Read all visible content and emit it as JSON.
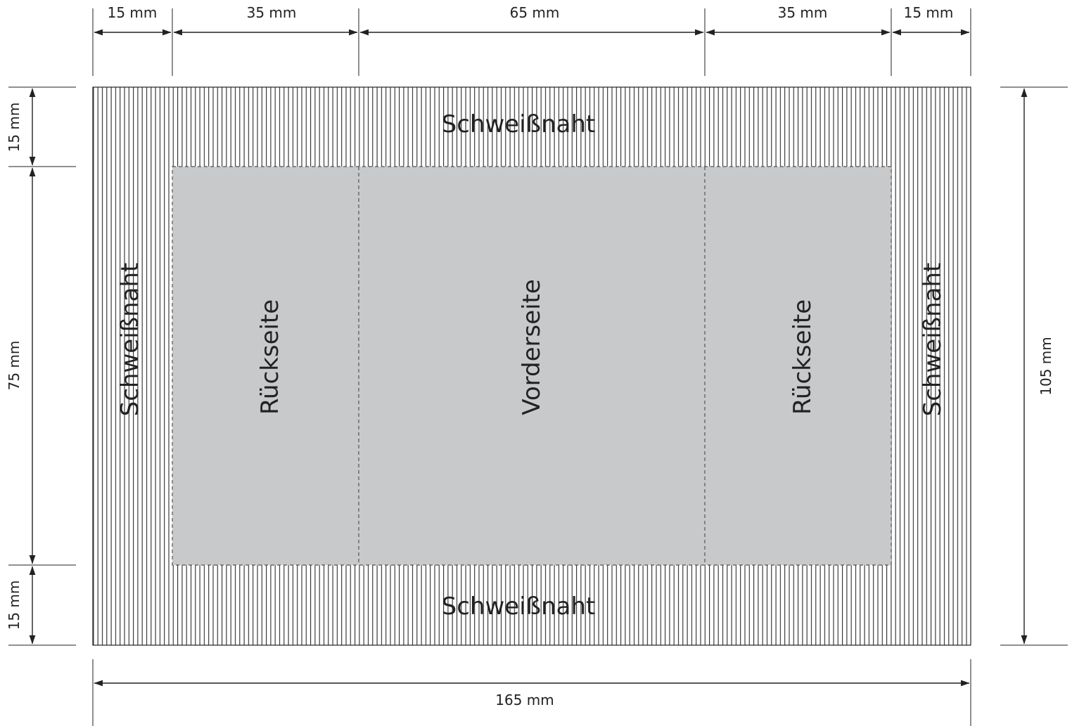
{
  "colors": {
    "ink": "#222222",
    "print_area": "#c8c9cb",
    "seam_hatch": "#2a2a2a",
    "background": "#ffffff"
  },
  "dimensions": {
    "top": [
      "15 mm",
      "35 mm",
      "65 mm",
      "35 mm",
      "15 mm"
    ],
    "left": [
      "15 mm",
      "75 mm",
      "15 mm"
    ],
    "right": "105 mm",
    "bottom": "165 mm"
  },
  "zones": {
    "seam_top": "Schweißnaht",
    "seam_bottom": "Schweißnaht",
    "seam_left": "Schweißnaht",
    "seam_right": "Schweißnaht",
    "back_left": "Rückseite",
    "front": "Vorderseite",
    "back_right": "Rückseite"
  }
}
